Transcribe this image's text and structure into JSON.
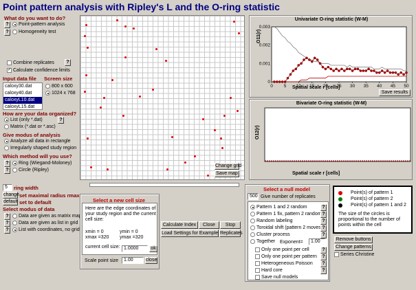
{
  "title": "Point pattern analysis with Ripley's L and the O-ring statistic",
  "q1": {
    "heading": "What do you want to do?",
    "options": [
      "Point-pattern analysis",
      "Homogeneity test"
    ],
    "selected": 0
  },
  "combine": {
    "label": "Combine replicates",
    "checked": false
  },
  "conf": {
    "label": "Calculate confidence limits",
    "checked": true
  },
  "input_file": {
    "heading": "Input data file",
    "files": [
      "caloxy30.dat",
      "caloxy40.dat",
      "caloxyL10.dat",
      "caloxyL15.dat"
    ],
    "selected": 2
  },
  "screen": {
    "heading": "Screen size",
    "options": [
      "800 x 600",
      "1024 x 768"
    ],
    "selected": 1
  },
  "organized": {
    "heading": "How are your data organized?",
    "options": [
      "List  (only *.dat)",
      "Matrix (*.dat or *.asc)"
    ],
    "selected": 0
  },
  "analysis": {
    "heading": "Give modus of analysis",
    "options": [
      "Analyze all data in rectangle",
      "Irregularly shaped study region"
    ],
    "selected": 0
  },
  "method": {
    "heading": "Which method will you use?",
    "options": [
      "Ring (Wiegand-Moloney)",
      "Circle (Ripley)"
    ],
    "selected": 0
  },
  "ring": {
    "value": "5",
    "label": "ring width",
    "max_btn": "change",
    "max_label": "set maximal radius rmax",
    "default_btn": "default",
    "default_label": "set to default"
  },
  "modus": {
    "heading": "Select modus of data",
    "options": [
      "Data are given as matrix map",
      "Data are given as list in grid",
      "List with coordinates, no grid"
    ],
    "selected": 2
  },
  "map": {
    "change_label": "Change grid",
    "save_label": "Save map"
  },
  "cell": {
    "heading": "Select a new cell size",
    "desc": "Here are the edge coordinates of your study region and the current cell size:",
    "xmin": "xmin = 0",
    "ymin": "ymin = 0",
    "xmax": "xmax =320",
    "ymax": "ymax =320",
    "cur_label": "current cell size:",
    "cur_value": "1.0000",
    "ok": "ok",
    "scale_label": "Scale point size",
    "scale_value": "1.00",
    "close": "close"
  },
  "actions": {
    "calc": "Calculate Index",
    "close": "Close",
    "stop": "Stop",
    "load": "Load Settings for Example",
    "replicates": "Replicates"
  },
  "null_model": {
    "heading": "Select a null model",
    "reps_value": "500",
    "reps_label": "Give number of replicates",
    "options": [
      "Pattern 1 and 2 random",
      "Pattern 1 fix, pattern 2 random",
      "Random labeling",
      "Toroidal shift (pattern 2 moves)",
      "Cluster process",
      "Together"
    ],
    "selected": 0,
    "exponent_label": "Exponent=",
    "exponent_value": "1.00",
    "checks": [
      "Only one point per cell",
      "Only one point per pattern",
      "Heterogeneous Poisson",
      "Hard core",
      "Save null models"
    ]
  },
  "legend": {
    "items": [
      "Point(s) of pattern 1",
      "Point(s) of pattern 2",
      "Point(s) of pattern 1 and 2"
    ],
    "colors": [
      "#e00000",
      "#008000",
      "#000000"
    ],
    "note": "The size of the circles is proportional to the number of points within the cell"
  },
  "buttons_right": {
    "remove": "Remove buttons",
    "change": "Change patterns",
    "series": "Series Christine"
  },
  "chart_data": [
    {
      "type": "line",
      "title": "Univariate O-ring statistic (W-M)",
      "xlabel": "Spatial scale r [cells]",
      "ylabel": "O11(r)",
      "xlim": [
        0,
        50
      ],
      "ylim": [
        0,
        0.003
      ],
      "xticks": [
        "0",
        "5",
        "10",
        "15",
        "20",
        "25",
        "30",
        "35",
        "40",
        "45",
        "50"
      ],
      "yticks": [
        "0.003",
        "0.002",
        "0.001",
        "0"
      ],
      "x": [
        1,
        2,
        3,
        4,
        5,
        6,
        7,
        8,
        9,
        10,
        11,
        12,
        13,
        14,
        15,
        16,
        17,
        18,
        19,
        20,
        21,
        22,
        23,
        24,
        25,
        26,
        27,
        28,
        29,
        30,
        31,
        32,
        33,
        34,
        35,
        36,
        37,
        38,
        39,
        40,
        41,
        42,
        43,
        44,
        45,
        46,
        47,
        48,
        49,
        50
      ],
      "series": [
        {
          "values": [
            0.0,
            0.0,
            0.0,
            0.0,
            0.0,
            0.0002,
            0.0004,
            0.0006,
            0.0007,
            0.0009,
            0.001,
            0.0012,
            0.0013,
            0.0012,
            0.0011,
            0.0013,
            0.0012,
            0.001,
            0.0008,
            0.0007,
            0.0008,
            0.0007,
            0.0006,
            0.0007,
            0.0006,
            0.0007,
            0.0006,
            0.0007,
            0.0007,
            0.0006,
            0.0007,
            0.0007,
            0.0006,
            0.0006,
            0.0006,
            0.0007,
            0.0006,
            0.0006,
            0.0005,
            0.0005,
            0.0006,
            0.0005,
            0.0006,
            0.0005,
            0.0005,
            0.0005,
            0.0004,
            0.0005,
            0.0004,
            0.0005
          ]
        },
        {
          "values": [
            0.003,
            0.0029,
            0.0027,
            0.0025,
            0.0024,
            0.0022,
            0.0021,
            0.0019,
            0.0018,
            0.0016,
            0.0015,
            0.0014,
            0.0013,
            0.0012,
            0.0012,
            0.0011,
            0.0011,
            0.001,
            0.001,
            0.001,
            0.001,
            0.0009,
            0.0009,
            0.0009,
            0.0009,
            0.0009,
            0.0009,
            0.0008,
            0.0009,
            0.0008,
            0.0008,
            0.0008,
            0.0008,
            0.0008,
            0.0008,
            0.0008,
            0.0008,
            0.0007,
            0.0007,
            0.0007,
            0.0008,
            0.0007,
            0.0007,
            0.0007,
            0.0007,
            0.0007,
            0.0007,
            0.0007,
            0.0006,
            0.0006
          ]
        },
        {
          "values": [
            0.0,
            0.0,
            0.0,
            0.0,
            0.0,
            0.0,
            0.0,
            0.0,
            0.0,
            0.0,
            0.0001,
            0.0001,
            0.0001,
            0.0002,
            0.0002,
            0.0002,
            0.0002,
            0.0002,
            0.0002,
            0.0002,
            0.0003,
            0.0003,
            0.0003,
            0.0003,
            0.0003,
            0.0003,
            0.0003,
            0.0003,
            0.0003,
            0.0003,
            0.0003,
            0.0003,
            0.0003,
            0.0003,
            0.0003,
            0.0003,
            0.0003,
            0.0003,
            0.0003,
            0.0003,
            0.0003,
            0.0003,
            0.0003,
            0.0003,
            0.0003,
            0.0003,
            0.0003,
            0.0003,
            0.0003,
            0.0003
          ]
        }
      ],
      "save_label": "Save results"
    },
    {
      "type": "line",
      "title": "Bivariate O-ring statistic (W-M)",
      "xlabel": "Spatial scale r [cells]",
      "ylabel": "O12(r)",
      "series": [
        {
          "values": [
            0,
            0,
            0,
            0,
            0,
            0,
            0,
            0,
            0,
            0
          ]
        }
      ]
    }
  ]
}
